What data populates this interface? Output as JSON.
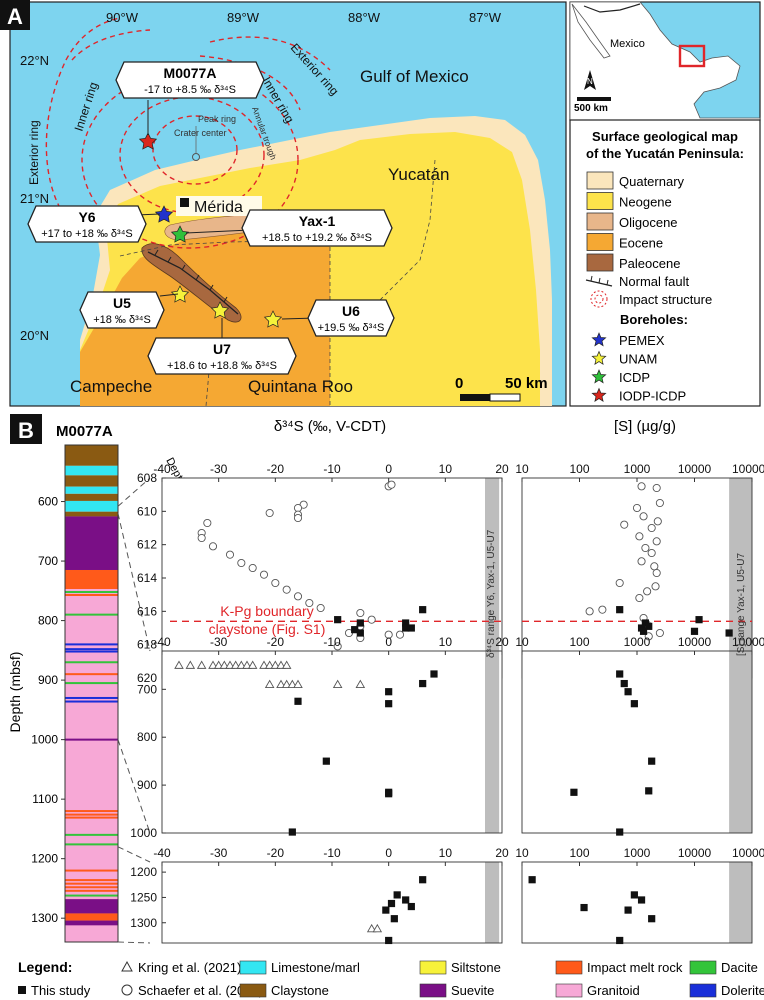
{
  "panel_a": {
    "label": "A",
    "lon_ticks": [
      "90°W",
      "89°W",
      "88°W",
      "87°W"
    ],
    "lat_ticks": [
      "22°N",
      "21°N",
      "20°N"
    ],
    "place_names": {
      "gulf": "Gulf of Mexico",
      "yucatan": "Yucatán",
      "campeche": "Campeche",
      "quintana_roo": "Quintana Roo",
      "merida": "Mérida"
    },
    "ring_labels": {
      "exterior_left": "Exterior ring",
      "inner_left": "Inner ring",
      "inner_right": "Inner ring",
      "exterior_right": "Exterior ring",
      "annular": "Annular trough",
      "peak": "Peak ring",
      "crater": "Crater center"
    },
    "callouts": {
      "m0077a": {
        "name": "M0077A",
        "range": "-17 to +8.5 ‰ δ³⁴S"
      },
      "y6": {
        "name": "Y6",
        "range": "+17 to +18 ‰ δ³⁴S"
      },
      "yax1": {
        "name": "Yax-1",
        "range": "+18.5 to +19.2 ‰ δ³⁴S"
      },
      "u5": {
        "name": "U5",
        "range": "+18 ‰ δ³⁴S"
      },
      "u6": {
        "name": "U6",
        "range": "+19.5 ‰ δ³⁴S"
      },
      "u7": {
        "name": "U7",
        "range": "+18.6 to +18.8 ‰ δ³⁴S"
      }
    },
    "scale_bar": {
      "zero": "0",
      "length": "50 km"
    },
    "inset": {
      "country": "Mexico",
      "north": "N",
      "scale": "500 km"
    },
    "legend": {
      "title_line1": "Surface geological map",
      "title_line2": "of the Yucatán Peninsula:",
      "units": [
        {
          "label": "Quaternary",
          "color": "#fbe6bc"
        },
        {
          "label": "Neogene",
          "color": "#fde34b"
        },
        {
          "label": "Oligocene",
          "color": "#e8b68a"
        },
        {
          "label": "Eocene",
          "color": "#f5a833"
        },
        {
          "label": "Paleocene",
          "color": "#a8683f"
        }
      ],
      "normal_fault": "Normal fault",
      "impact_structure": "Impact structure",
      "boreholes_title": "Boreholes:",
      "boreholes": [
        {
          "label": "PEMEX",
          "color": "#2233cc"
        },
        {
          "label": "UNAM",
          "color": "#f5f23a"
        },
        {
          "label": "ICDP",
          "color": "#2fbf3a"
        },
        {
          "label": "IODP-ICDP",
          "color": "#d9261c"
        }
      ]
    }
  },
  "panel_b": {
    "label": "B",
    "core_title": "M0077A",
    "depth_axis_title": "Depth (mbsf)",
    "depth_col_title": "Depth (mbsf)",
    "x1_title": "δ³⁴S (‰, V-CDT)",
    "x2_title": "[S] (µg/g)",
    "kpg_label_line1": "K-Pg boundary",
    "kpg_label_line2": "claystone (Fig. S1)",
    "band1_label": "δ³⁴S range Y6, Yax-1, U5-U7",
    "band2_label": "[S] range Yax-1, U5-U7",
    "legend": {
      "title": "Legend:",
      "kring": "Kring et al. (2021)",
      "this_study": "This study",
      "schaefer": "Schaefer et al. (2020)",
      "lithologies": [
        {
          "label": "Limestone/marl",
          "color": "#33e6f2"
        },
        {
          "label": "Claystone",
          "color": "#8a5a12"
        },
        {
          "label": "Siltstone",
          "color": "#f7f23a"
        },
        {
          "label": "Suevite",
          "color": "#7a0f86"
        },
        {
          "label": "Impact melt rock",
          "color": "#ff5a1a"
        },
        {
          "label": "Granitoid",
          "color": "#f7a8d6"
        },
        {
          "label": "Dacite",
          "color": "#33c43a"
        },
        {
          "label": "Dolerite",
          "color": "#1a2fd9"
        }
      ]
    }
  },
  "chart_data": [
    {
      "type": "scatter",
      "panel": "B top left",
      "xlabel": "δ³⁴S (‰, V-CDT)",
      "ylabel": "Depth (mbsf)",
      "xlim": [
        -40,
        20
      ],
      "ylim": [
        620,
        608
      ],
      "x_ticks": [
        -40,
        -30,
        -20,
        -10,
        0,
        10,
        20
      ],
      "y_ticks": [
        608,
        610,
        612,
        614,
        616,
        618,
        620
      ],
      "series": [
        {
          "name": "Schaefer et al. (2020)",
          "marker": "open-circle",
          "points": [
            [
              0,
              608.5
            ],
            [
              0.5,
              608.4
            ],
            [
              -15,
              609.6
            ],
            [
              -16,
              609.8
            ],
            [
              -21,
              610.1
            ],
            [
              -16,
              610.2
            ],
            [
              -16,
              610.4
            ],
            [
              -32,
              610.7
            ],
            [
              -33,
              611.3
            ],
            [
              -33,
              611.6
            ],
            [
              -31,
              612.1
            ],
            [
              -28,
              612.6
            ],
            [
              -26,
              613.1
            ],
            [
              -24,
              613.4
            ],
            [
              -22,
              613.8
            ],
            [
              -20,
              614.3
            ],
            [
              -18,
              614.7
            ],
            [
              -16,
              615.1
            ],
            [
              -14,
              615.5
            ],
            [
              -12,
              615.8
            ],
            [
              -5,
              616.1
            ],
            [
              -3,
              616.5
            ],
            [
              -5,
              616.9
            ],
            [
              -7,
              617.3
            ],
            [
              0,
              617.4
            ],
            [
              2,
              617.4
            ],
            [
              -5,
              617.6
            ],
            [
              -9,
              618.1
            ]
          ]
        },
        {
          "name": "This study",
          "marker": "filled-square",
          "points": [
            [
              6,
              615.9
            ],
            [
              -9,
              616.5
            ],
            [
              -5,
              616.7
            ],
            [
              3,
              616.7
            ],
            [
              -6,
              617.1
            ],
            [
              3,
              617.0
            ],
            [
              -5,
              617.3
            ],
            [
              4,
              617.0
            ],
            [
              -7,
              618.8
            ]
          ]
        },
        {
          "name": "Kring et al. (2021)",
          "marker": "open-triangle",
          "points": [
            [
              -17,
              618.8
            ],
            [
              -14,
              618.8
            ],
            [
              -13,
              618.8
            ],
            [
              -12,
              618.8
            ],
            [
              -9,
              618.8
            ]
          ]
        }
      ],
      "kpg_depth": 616.6,
      "band_x": [
        17,
        19.5
      ]
    },
    {
      "type": "scatter",
      "panel": "B top right",
      "xlabel": "[S] (µg/g)",
      "xscale": "log",
      "xlim": [
        10,
        100000
      ],
      "ylim": [
        620,
        608
      ],
      "x_ticks": [
        10,
        100,
        1000,
        10000,
        100000
      ],
      "series": [
        {
          "name": "Schaefer et al. (2020)",
          "marker": "open-circle",
          "points": [
            [
              1200,
              608.5
            ],
            [
              2200,
              608.6
            ],
            [
              2500,
              609.5
            ],
            [
              1000,
              609.8
            ],
            [
              1300,
              610.3
            ],
            [
              2300,
              610.6
            ],
            [
              600,
              610.8
            ],
            [
              1800,
              611.0
            ],
            [
              1100,
              611.5
            ],
            [
              2200,
              611.8
            ],
            [
              1400,
              612.2
            ],
            [
              1800,
              612.5
            ],
            [
              1200,
              613.0
            ],
            [
              2000,
              613.3
            ],
            [
              2200,
              613.7
            ],
            [
              500,
              614.3
            ],
            [
              2100,
              614.5
            ],
            [
              1500,
              614.8
            ],
            [
              1100,
              615.2
            ],
            [
              250,
              615.9
            ],
            [
              150,
              616.0
            ],
            [
              1300,
              616.4
            ],
            [
              1500,
              616.8
            ],
            [
              2500,
              617.3
            ],
            [
              1600,
              617.5
            ],
            [
              3000,
              619.0
            ]
          ]
        },
        {
          "name": "This study",
          "marker": "filled-square",
          "points": [
            [
              500,
              615.9
            ],
            [
              12000,
              616.5
            ],
            [
              1400,
              616.7
            ],
            [
              1600,
              616.9
            ],
            [
              1200,
              617.0
            ],
            [
              1300,
              617.2
            ],
            [
              10000,
              617.2
            ],
            [
              40000,
              617.3
            ],
            [
              8000,
              618.8
            ]
          ]
        }
      ],
      "band_x": [
        40000,
        100000
      ]
    },
    {
      "type": "scatter",
      "panel": "B middle left",
      "xlabel": "δ³⁴S (‰, V-CDT)",
      "xlim": [
        -40,
        20
      ],
      "ylim": [
        1000,
        620
      ],
      "y_ticks": [
        700,
        800,
        900,
        1000
      ],
      "series": [
        {
          "name": "Kring et al. (2021)",
          "marker": "open-triangle",
          "points": [
            [
              -37,
              650
            ],
            [
              -35,
              650
            ],
            [
              -33,
              650
            ],
            [
              -31,
              650
            ],
            [
              -30,
              650
            ],
            [
              -29,
              650
            ],
            [
              -28,
              650
            ],
            [
              -27,
              650
            ],
            [
              -26,
              650
            ],
            [
              -25,
              650
            ],
            [
              -24,
              650
            ],
            [
              -22,
              650
            ],
            [
              -21,
              650
            ],
            [
              -20,
              650
            ],
            [
              -19,
              650
            ],
            [
              -18,
              650
            ],
            [
              -21,
              690
            ],
            [
              -19,
              690
            ],
            [
              -18,
              690
            ],
            [
              -17,
              690
            ],
            [
              -16,
              690
            ],
            [
              -9,
              690
            ],
            [
              -5,
              690
            ]
          ]
        },
        {
          "name": "This study",
          "marker": "filled-square",
          "points": [
            [
              8,
              668
            ],
            [
              6,
              688
            ],
            [
              0,
              705
            ],
            [
              0,
              730
            ],
            [
              -16,
              725
            ],
            [
              -11,
              850
            ],
            [
              0,
              915
            ],
            [
              0,
              918
            ],
            [
              -17,
              998
            ]
          ]
        }
      ],
      "band_x": [
        17,
        19.5
      ]
    },
    {
      "type": "scatter",
      "panel": "B middle right",
      "xlabel": "[S] (µg/g)",
      "xscale": "log",
      "xlim": [
        10,
        100000
      ],
      "ylim": [
        1000,
        620
      ],
      "series": [
        {
          "name": "This study",
          "marker": "filled-square",
          "points": [
            [
              500,
              668
            ],
            [
              600,
              688
            ],
            [
              700,
              705
            ],
            [
              900,
              730
            ],
            [
              1800,
              850
            ],
            [
              80,
              915
            ],
            [
              1600,
              912
            ],
            [
              500,
              998
            ]
          ]
        }
      ],
      "band_x": [
        40000,
        100000
      ]
    },
    {
      "type": "scatter",
      "panel": "B bottom left",
      "xlabel": "δ³⁴S (‰, V-CDT)",
      "xlim": [
        -40,
        20
      ],
      "ylim": [
        1340,
        1180
      ],
      "y_ticks": [
        1200,
        1250,
        1300
      ],
      "series": [
        {
          "name": "This study",
          "marker": "filled-square",
          "points": [
            [
              6,
              1215
            ],
            [
              1.5,
              1245
            ],
            [
              3,
              1255
            ],
            [
              0.5,
              1262
            ],
            [
              4,
              1268
            ],
            [
              -0.5,
              1275
            ],
            [
              1,
              1292
            ],
            [
              0,
              1335
            ]
          ]
        },
        {
          "name": "Kring et al. (2021)",
          "marker": "open-triangle",
          "points": [
            [
              -3,
              1312
            ],
            [
              -2,
              1312
            ]
          ]
        }
      ],
      "band_x": [
        17,
        19.5
      ]
    },
    {
      "type": "scatter",
      "panel": "B bottom right",
      "xlabel": "[S] (µg/g)",
      "xscale": "log",
      "xlim": [
        10,
        100000
      ],
      "ylim": [
        1340,
        1180
      ],
      "series": [
        {
          "name": "This study",
          "marker": "filled-square",
          "points": [
            [
              15,
              1215
            ],
            [
              900,
              1245
            ],
            [
              1200,
              1255
            ],
            [
              120,
              1270
            ],
            [
              700,
              1275
            ],
            [
              1800,
              1292
            ],
            [
              500,
              1335
            ]
          ]
        }
      ],
      "band_x": [
        40000,
        100000
      ]
    }
  ],
  "core_column": {
    "ylim": [
      505,
      1340
    ],
    "depth_ticks": [
      600,
      700,
      800,
      900,
      1000,
      1100,
      1200,
      1300
    ],
    "intervals": [
      {
        "from": 505,
        "to": 540,
        "lith": "Claystone",
        "color": "#8a5a12"
      },
      {
        "from": 540,
        "to": 556,
        "lith": "Limestone/marl",
        "color": "#33e6f2"
      },
      {
        "from": 556,
        "to": 575,
        "lith": "Claystone",
        "color": "#8a5a12"
      },
      {
        "from": 575,
        "to": 587,
        "lith": "Limestone/marl",
        "color": "#33e6f2"
      },
      {
        "from": 587,
        "to": 599,
        "lith": "Claystone",
        "color": "#8a5a12"
      },
      {
        "from": 599,
        "to": 617,
        "lith": "Limestone/marl",
        "color": "#33e6f2"
      },
      {
        "from": 617,
        "to": 625,
        "lith": "Claystone",
        "color": "#8a5a12"
      },
      {
        "from": 625,
        "to": 715,
        "lith": "Suevite",
        "color": "#7a0f86"
      },
      {
        "from": 715,
        "to": 747,
        "lith": "Impact melt rock",
        "color": "#ff5a1a"
      },
      {
        "from": 747,
        "to": 1340,
        "lith": "Granitoid",
        "color": "#f7a8d6"
      }
    ],
    "thin_layers": [
      {
        "depth": 752,
        "color": "#33c43a"
      },
      {
        "depth": 757,
        "color": "#ff5a1a"
      },
      {
        "depth": 790,
        "color": "#33c43a"
      },
      {
        "depth": 840,
        "color": "#1a2fd9"
      },
      {
        "depth": 848,
        "color": "#1a2fd9"
      },
      {
        "depth": 852,
        "color": "#1a2fd9"
      },
      {
        "depth": 870,
        "color": "#33c43a"
      },
      {
        "depth": 890,
        "color": "#ff5a1a"
      },
      {
        "depth": 905,
        "color": "#33c43a"
      },
      {
        "depth": 930,
        "color": "#1a2fd9"
      },
      {
        "depth": 936,
        "color": "#1a2fd9"
      },
      {
        "depth": 1000,
        "color": "#7a0f86"
      },
      {
        "depth": 1120,
        "color": "#ff5a1a"
      },
      {
        "depth": 1126,
        "color": "#ff5a1a"
      },
      {
        "depth": 1131,
        "color": "#ff5a1a"
      },
      {
        "depth": 1160,
        "color": "#33c43a"
      },
      {
        "depth": 1176,
        "color": "#33c43a"
      },
      {
        "depth": 1220,
        "color": "#ff5a1a"
      },
      {
        "depth": 1236,
        "color": "#ff5a1a"
      },
      {
        "depth": 1242,
        "color": "#ff5a1a"
      },
      {
        "depth": 1248,
        "color": "#ff5a1a"
      },
      {
        "depth": 1254,
        "color": "#ff5a1a"
      },
      {
        "depth": 1262,
        "color": "#33c43a"
      }
    ],
    "thick_layers": [
      {
        "from": 1268,
        "to": 1292,
        "color": "#7a0f86"
      },
      {
        "from": 1292,
        "to": 1304,
        "color": "#ff5a1a"
      },
      {
        "from": 1304,
        "to": 1312,
        "color": "#7a0f86"
      }
    ]
  }
}
